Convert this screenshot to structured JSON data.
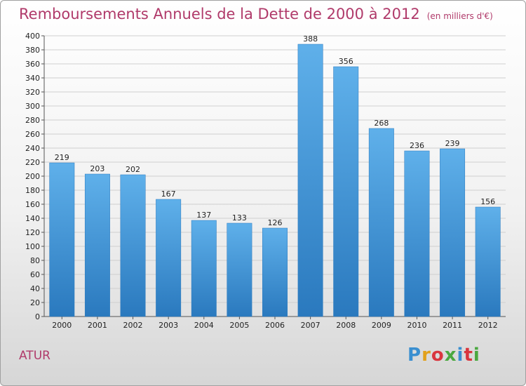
{
  "header": {
    "title": "Remboursements Annuels de la Dette de 2000 à 2012",
    "unit": "(en milliers d'€)"
  },
  "footer": {
    "place": "ATUR",
    "logo": "Proxiti",
    "logo_colors": [
      "#3a8fd0",
      "#e2a11b",
      "#d9363e",
      "#4aa83f",
      "#3a8fd0",
      "#d9363e",
      "#4aa83f"
    ]
  },
  "colors": {
    "bar_light": "#5fb0ea",
    "bar_dark": "#2a79be",
    "title": "#b03a6a"
  },
  "chart_data": {
    "type": "bar",
    "categories": [
      "2000",
      "2001",
      "2002",
      "2003",
      "2004",
      "2005",
      "2006",
      "2007",
      "2008",
      "2009",
      "2010",
      "2011",
      "2012"
    ],
    "values": [
      219,
      203,
      202,
      167,
      137,
      133,
      126,
      388,
      356,
      268,
      236,
      239,
      156
    ],
    "ylim": [
      0,
      400
    ],
    "ytick_step": 20,
    "grid": true,
    "legend": "none"
  }
}
